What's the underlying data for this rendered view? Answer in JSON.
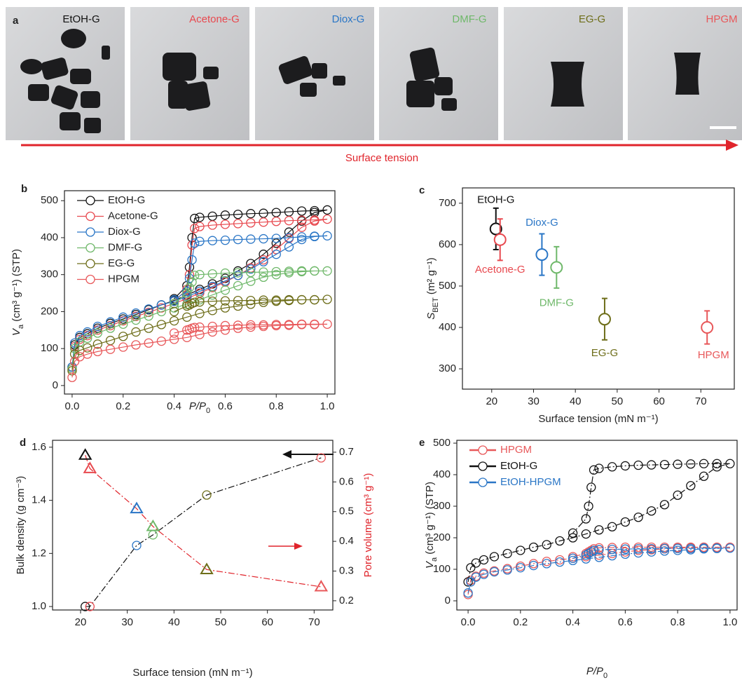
{
  "photos": {
    "panel": "a",
    "labels": [
      "EtOH-G",
      "Acetone-G",
      "Diox-G",
      "DMF-G",
      "EG-G",
      "HPGM"
    ],
    "colors": [
      "#111111",
      "#e8494f",
      "#2a76c6",
      "#6fb86a",
      "#6e6e1a",
      "#e8585a"
    ],
    "arrow_label": "Surface tension",
    "arrow_color": "#e0242b"
  },
  "chart_data": [
    {
      "panel": "b",
      "type": "line",
      "x_label": [
        "P/P",
        "0"
      ],
      "y_label": [
        "V",
        "a",
        " (cm³ g⁻¹) (STP)"
      ],
      "xlim": [
        -0.03,
        1.03
      ],
      "ylim": [
        -23,
        527
      ],
      "xticks": [
        {
          "value": 0,
          "label": "0.0"
        },
        0.2,
        0.4,
        0.6,
        0.8,
        {
          "value": 1,
          "label": "1.0"
        }
      ],
      "yticks": [
        0,
        100,
        200,
        300,
        400,
        500
      ],
      "legend": "upper left",
      "marker": "circle",
      "x": [
        0,
        0.01,
        0.03,
        0.06,
        0.1,
        0.15,
        0.2,
        0.25,
        0.3,
        0.35,
        0.4,
        0.45,
        0.5,
        0.55,
        0.6,
        0.65,
        0.7,
        0.75,
        0.8,
        0.85,
        0.9,
        0.95,
        1.0,
        0.95,
        0.9,
        0.85,
        0.8,
        0.75,
        0.7,
        0.65,
        0.6,
        0.55,
        0.5,
        0.48,
        0.47,
        0.46,
        0.45,
        0.4
      ],
      "series": [
        {
          "name": "EtOH-G",
          "color": "#111111",
          "values": [
            50,
            110,
            130,
            140,
            155,
            168,
            180,
            192,
            205,
            218,
            230,
            245,
            260,
            275,
            290,
            310,
            330,
            355,
            385,
            415,
            445,
            468,
            475,
            473,
            472,
            470,
            468,
            466,
            465,
            463,
            461,
            458,
            455,
            452,
            400,
            320,
            270,
            235
          ]
        },
        {
          "name": "Acetone-G",
          "color": "#e8494f",
          "values": [
            45,
            105,
            125,
            135,
            150,
            162,
            175,
            187,
            198,
            210,
            222,
            235,
            250,
            265,
            280,
            298,
            318,
            340,
            368,
            398,
            428,
            445,
            450,
            448,
            447,
            446,
            444,
            442,
            440,
            438,
            436,
            434,
            430,
            425,
            380,
            300,
            260,
            228
          ]
        },
        {
          "name": "Diox-G",
          "color": "#2a76c6",
          "values": [
            50,
            115,
            135,
            145,
            160,
            172,
            185,
            196,
            207,
            218,
            228,
            240,
            255,
            268,
            283,
            298,
            315,
            335,
            355,
            375,
            395,
            403,
            405,
            404,
            402,
            400,
            398,
            397,
            396,
            395,
            393,
            392,
            390,
            385,
            340,
            290,
            255,
            232
          ]
        },
        {
          "name": "DMF-G",
          "color": "#6fb86a",
          "values": [
            45,
            100,
            118,
            128,
            142,
            155,
            166,
            177,
            188,
            200,
            210,
            220,
            232,
            245,
            258,
            270,
            282,
            293,
            300,
            305,
            308,
            310,
            310,
            310,
            310,
            309,
            308,
            307,
            306,
            305,
            304,
            302,
            300,
            298,
            280,
            265,
            250,
            222
          ]
        },
        {
          "name": "EG-G",
          "color": "#6e6e1a",
          "values": [
            40,
            85,
            95,
            102,
            112,
            122,
            133,
            145,
            155,
            165,
            175,
            185,
            195,
            203,
            210,
            215,
            220,
            225,
            228,
            230,
            232,
            232,
            233,
            232,
            232,
            232,
            231,
            231,
            230,
            230,
            229,
            228,
            226,
            225,
            222,
            218,
            215,
            200
          ]
        },
        {
          "name": "HPGM",
          "color": "#e8585a",
          "values": [
            22,
            65,
            78,
            85,
            92,
            98,
            104,
            110,
            115,
            120,
            125,
            130,
            138,
            145,
            150,
            155,
            158,
            160,
            162,
            163,
            165,
            165,
            166,
            166,
            166,
            165,
            165,
            164,
            164,
            163,
            162,
            160,
            158,
            157,
            155,
            152,
            150,
            142
          ]
        }
      ]
    },
    {
      "panel": "c",
      "type": "scatter",
      "x_label": "Surface tension (mN m⁻¹)",
      "y_label": [
        "S",
        "BET",
        " (m² g⁻¹)"
      ],
      "xlim": [
        13,
        78
      ],
      "ylim": [
        251,
        737
      ],
      "xticks": [
        20,
        30,
        40,
        50,
        60,
        70
      ],
      "yticks": [
        300,
        400,
        500,
        600,
        700
      ],
      "marker": "circle",
      "series": [
        {
          "name": "EtOH-G",
          "color": "#111111",
          "x": [
            21
          ],
          "values": [
            638
          ],
          "errors": [
            50
          ]
        },
        {
          "name": "Acetone-G",
          "color": "#e8494f",
          "x": [
            22
          ],
          "values": [
            612
          ],
          "errors": [
            50
          ]
        },
        {
          "name": "Diox-G",
          "color": "#2a76c6",
          "x": [
            32
          ],
          "values": [
            576
          ],
          "errors": [
            50
          ]
        },
        {
          "name": "DMF-G",
          "color": "#6fb86a",
          "x": [
            35.5
          ],
          "values": [
            545
          ],
          "errors": [
            50
          ]
        },
        {
          "name": "EG-G",
          "color": "#6e6e1a",
          "x": [
            47
          ],
          "values": [
            420
          ],
          "errors": [
            50
          ]
        },
        {
          "name": "HPGM",
          "color": "#e8585a",
          "x": [
            71.5
          ],
          "values": [
            400
          ],
          "errors": [
            40
          ]
        }
      ]
    },
    {
      "panel": "d",
      "type": "line",
      "x_label": "Surface tension (mN m⁻¹)",
      "y_label": "Bulk density (g cm⁻³)",
      "y2_label": "Pore volume (cm³ g⁻¹)",
      "y2_label_color": "#e0242b",
      "xlim": [
        14,
        74
      ],
      "ylim": [
        0.987,
        1.626
      ],
      "y2lim": [
        0.169,
        0.74
      ],
      "xticks": [
        20,
        30,
        40,
        50,
        60,
        70
      ],
      "yticks": [
        {
          "value": 1,
          "label": "1.0"
        },
        1.2,
        1.4,
        1.6
      ],
      "y2ticks": [
        0.2,
        0.3,
        0.4,
        0.5,
        0.6,
        0.7
      ],
      "line_style": "dashdot",
      "series": [
        {
          "marker": "circle",
          "color": "#111111",
          "x": [
            21,
            22,
            32,
            35.5,
            47,
            71.5
          ],
          "values": [
            1.0,
            1.0,
            1.23,
            1.27,
            1.42,
            1.56
          ],
          "point_colors": [
            "#111111",
            "#e8494f",
            "#2a76c6",
            "#6fb86a",
            "#6e6e1a",
            "#e8585a"
          ]
        },
        {
          "marker": "triangle",
          "axis": "y2",
          "color": "#e0242b",
          "x": [
            21,
            22,
            32,
            35.5,
            47,
            71.5
          ],
          "values": [
            0.69,
            0.645,
            0.51,
            0.45,
            0.305,
            0.247
          ],
          "point_colors": [
            "#111111",
            "#e8494f",
            "#2a76c6",
            "#6fb86a",
            "#6e6e1a",
            "#e8585a"
          ]
        }
      ]
    },
    {
      "panel": "e",
      "type": "line",
      "x_label": [
        "P/P",
        "0"
      ],
      "y_label": [
        "V",
        "a",
        " (cm³ g⁻¹) (STP)"
      ],
      "xlim": [
        -0.043,
        1.027
      ],
      "ylim": [
        -29,
        509
      ],
      "xticks": [
        {
          "value": 0,
          "label": "0.0"
        },
        0.2,
        0.4,
        0.6,
        0.8,
        {
          "value": 1,
          "label": "1.0"
        }
      ],
      "yticks": [
        0,
        100,
        200,
        300,
        400,
        500
      ],
      "legend": "upper left",
      "legend_text_colored": true,
      "marker": "circle",
      "line_style": "dashdot",
      "x": [
        0,
        0.01,
        0.03,
        0.06,
        0.1,
        0.15,
        0.2,
        0.25,
        0.3,
        0.35,
        0.4,
        0.45,
        0.5,
        0.55,
        0.6,
        0.65,
        0.7,
        0.75,
        0.8,
        0.85,
        0.9,
        0.95,
        1.0,
        0.95,
        0.9,
        0.85,
        0.8,
        0.75,
        0.7,
        0.65,
        0.6,
        0.55,
        0.5,
        0.48,
        0.47,
        0.46,
        0.45,
        0.4
      ],
      "series": [
        {
          "name": "HPGM",
          "color": "#e8585a",
          "values": [
            20,
            65,
            78,
            88,
            95,
            102,
            110,
            118,
            125,
            130,
            135,
            140,
            145,
            150,
            155,
            160,
            162,
            165,
            167,
            168,
            170,
            170,
            170,
            170,
            170,
            170,
            170,
            170,
            170,
            170,
            170,
            169,
            168,
            165,
            160,
            155,
            150,
            140
          ]
        },
        {
          "name": "EtOH-G",
          "color": "#111111",
          "values": [
            60,
            105,
            120,
            130,
            140,
            150,
            160,
            170,
            178,
            190,
            200,
            212,
            225,
            235,
            250,
            265,
            285,
            305,
            335,
            365,
            395,
            425,
            435,
            435,
            435,
            434,
            433,
            432,
            431,
            430,
            428,
            425,
            420,
            415,
            360,
            300,
            260,
            215
          ]
        },
        {
          "name": "EtOH-HPGM",
          "color": "#2a76c6",
          "values": [
            25,
            60,
            75,
            84,
            92,
            98,
            105,
            112,
            118,
            123,
            128,
            133,
            138,
            143,
            148,
            152,
            155,
            158,
            160,
            162,
            165,
            166,
            167,
            167,
            167,
            166,
            166,
            166,
            165,
            165,
            164,
            163,
            162,
            160,
            155,
            150,
            145,
            135
          ]
        }
      ]
    }
  ]
}
